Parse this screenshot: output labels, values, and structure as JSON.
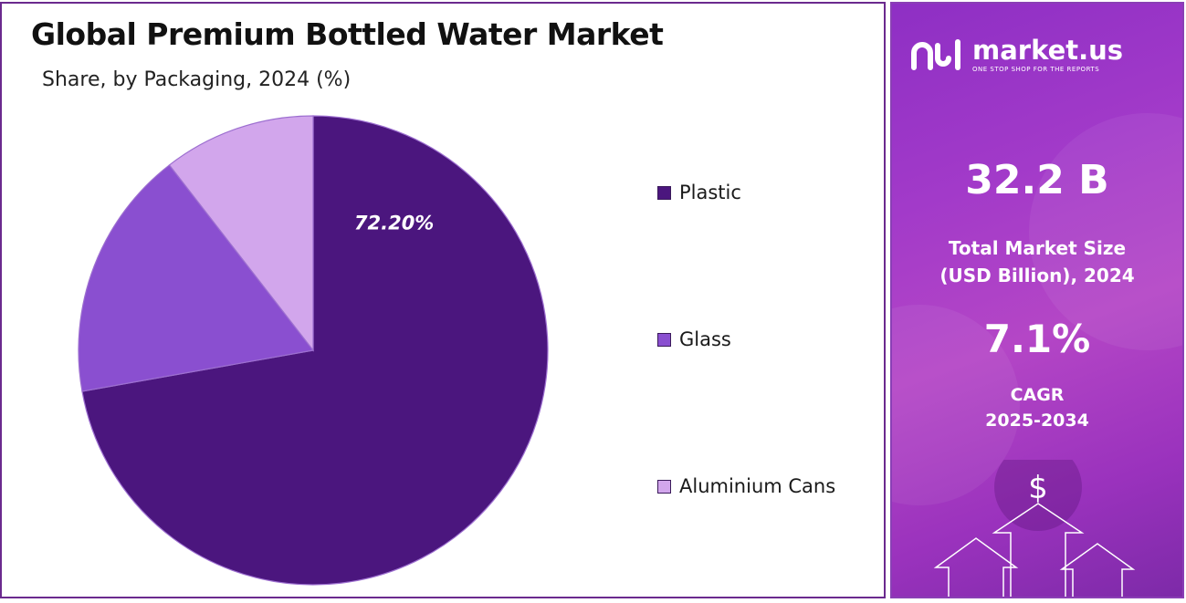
{
  "header": {
    "title": "Global Premium Bottled Water Market",
    "subtitle": "Share, by Packaging, 2024 (%)"
  },
  "chart_data": {
    "type": "pie",
    "title": "Global Premium Bottled Water Market",
    "subtitle": "Share, by Packaging, 2024 (%)",
    "categories": [
      "Plastic",
      "Glass",
      "Aluminium Cans"
    ],
    "values": [
      72.2,
      17.3,
      10.5
    ],
    "data_labels": [
      "72.20%",
      "",
      ""
    ],
    "colors": [
      "#4b167e",
      "#8a4fd0",
      "#d2a6ec"
    ],
    "legend_position": "right",
    "start_angle": "12 o'clock, clockwise"
  },
  "legend": {
    "items": [
      {
        "label": "Plastic",
        "color": "#4b167e"
      },
      {
        "label": "Glass",
        "color": "#8a4fd0"
      },
      {
        "label": "Aluminium Cans",
        "color": "#d2a6ec"
      }
    ]
  },
  "side_panel": {
    "brand_name": "market.us",
    "brand_tagline": "ONE STOP SHOP FOR THE REPORTS",
    "market_size_value": "32.2 B",
    "market_size_label_line1": "Total Market Size",
    "market_size_label_line2": "(USD Billion), 2024",
    "cagr_value": "7.1%",
    "cagr_label_line1": "CAGR",
    "cagr_label_line2": "2025-2034",
    "currency_symbol": "$",
    "brand_icon": "market-us-logo-icon",
    "decor_icons": [
      "dollar-icon",
      "up-arrow-icon"
    ]
  }
}
